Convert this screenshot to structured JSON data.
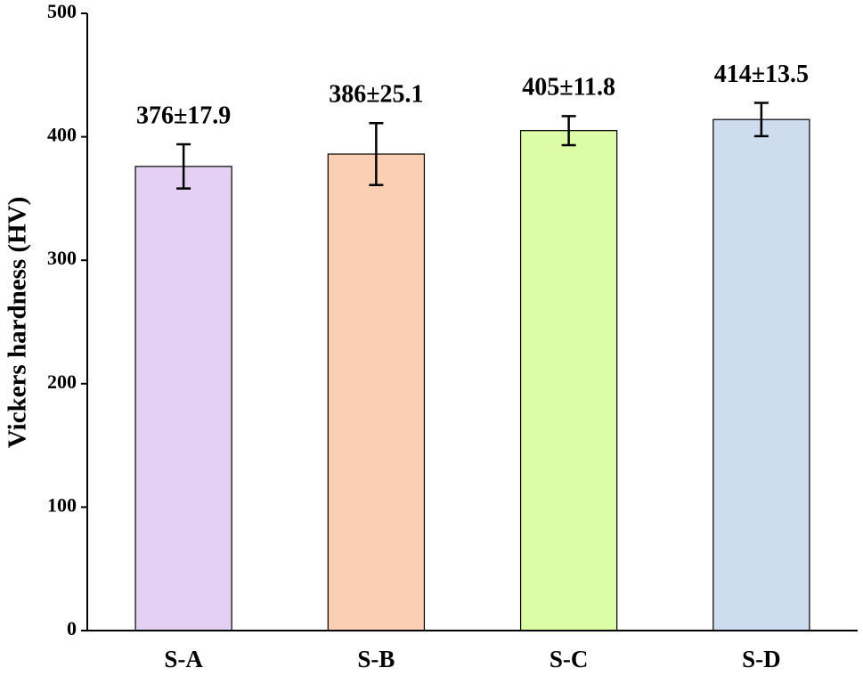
{
  "chart_data": {
    "type": "bar",
    "y_label": "Vickers hardness (HV)",
    "categories": [
      "S-A",
      "S-B",
      "S-C",
      "S-D"
    ],
    "values": [
      376,
      386,
      405,
      414
    ],
    "errors": [
      17.9,
      25.1,
      11.8,
      13.5
    ],
    "value_labels": [
      "376±17.9",
      "386±25.1",
      "405±11.8",
      "414±13.5"
    ],
    "colors": [
      "#e3d0f3",
      "#fbcfb3",
      "#dcfda6",
      "#cddcef"
    ],
    "ylim": [
      0,
      500
    ],
    "yticks": [
      0,
      100,
      200,
      300,
      400,
      500
    ],
    "grid": false
  }
}
